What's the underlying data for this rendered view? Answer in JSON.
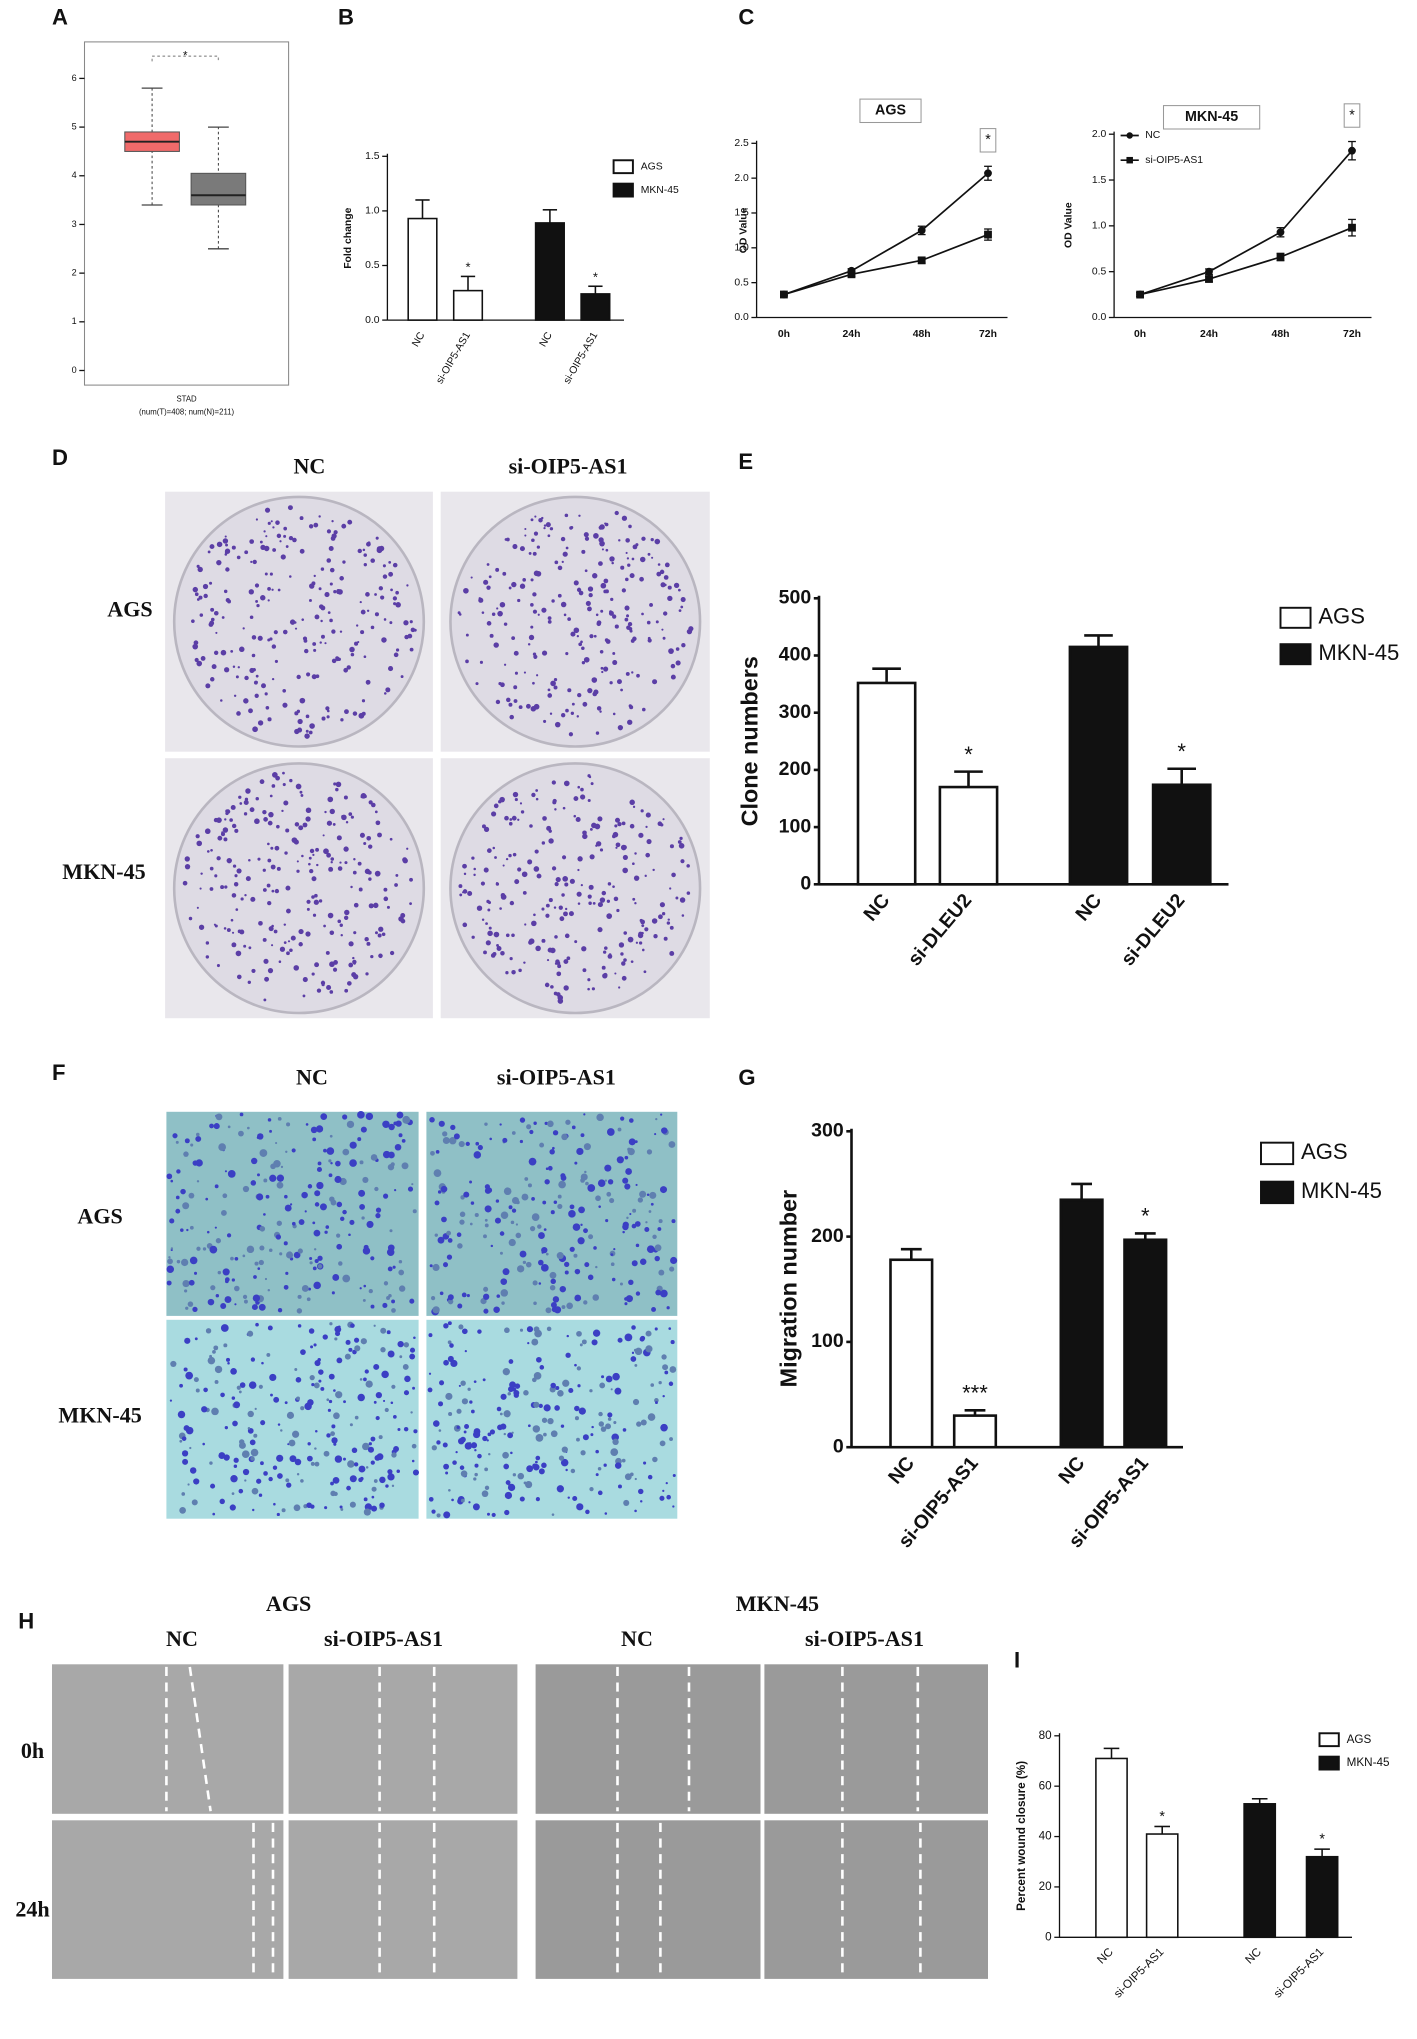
{
  "chart_data": [
    {
      "type": "box",
      "label": "A",
      "xlabel": "STAD",
      "xlabel_note": "(num(T)=408; num(N)=211)",
      "ylim": [
        -0.3,
        6.75
      ],
      "yticks": [
        0,
        1,
        2,
        3,
        4,
        5,
        6
      ],
      "significance": "*",
      "boxes": [
        {
          "color": "#f06a6a",
          "min": 3.4,
          "q1": 4.5,
          "median": 4.7,
          "q3": 4.9,
          "max": 5.8
        },
        {
          "color": "#7a7a7a",
          "min": 2.5,
          "q1": 3.4,
          "median": 3.6,
          "q3": 4.05,
          "max": 5.0
        }
      ]
    },
    {
      "type": "bar",
      "label": "B",
      "ylabel": "Fold change",
      "ylim": [
        0,
        1.5
      ],
      "yticks": [
        {
          "value": 0,
          "label": "0.0"
        },
        0.5,
        {
          "value": 1,
          "label": "1.0"
        },
        1.5
      ],
      "categories": [
        "NC",
        "si-OIP5-AS1",
        "NC",
        "si-OIP5-AS1"
      ],
      "significance": [
        null,
        "*",
        null,
        "*"
      ],
      "series": [
        {
          "name": "AGS",
          "color": "#ffffff",
          "values": [
            0.93,
            0.27,
            null,
            null
          ],
          "errors": [
            0.17,
            0.13,
            null,
            null
          ]
        },
        {
          "name": "MKN-45",
          "color": "#111111",
          "values": [
            null,
            null,
            0.89,
            0.24
          ],
          "errors": [
            null,
            null,
            0.12,
            0.07
          ]
        }
      ]
    },
    {
      "type": "line",
      "label": "C",
      "title": "AGS",
      "ylabel": "OD Value",
      "ylim": [
        0,
        2.5
      ],
      "yticks": [
        {
          "value": 0,
          "label": "0.0"
        },
        0.5,
        {
          "value": 1,
          "label": "1.0"
        },
        1.5,
        {
          "value": 2,
          "label": "2.0"
        },
        2.5
      ],
      "categories": [
        "0h",
        "24h",
        "48h",
        "72h"
      ],
      "significance": [
        null,
        null,
        null,
        "*"
      ],
      "series": [
        {
          "color": "#111111",
          "values": [
            0.33,
            0.67,
            1.25,
            2.07
          ],
          "errors": [
            0.02,
            0.03,
            0.06,
            0.1
          ]
        },
        {
          "color": "#111111",
          "values": [
            0.33,
            0.62,
            0.82,
            1.19
          ],
          "errors": [
            0.02,
            0.03,
            0.04,
            0.08
          ]
        }
      ]
    },
    {
      "type": "line",
      "title": "MKN-45",
      "ylabel": "OD Value",
      "ylim": [
        0,
        2.0
      ],
      "yticks": [
        {
          "value": 0,
          "label": "0.0"
        },
        0.5,
        {
          "value": 1,
          "label": "1.0"
        },
        1.5,
        {
          "value": 2,
          "label": "2.0"
        }
      ],
      "categories": [
        "0h",
        "24h",
        "48h",
        "72h"
      ],
      "significance": [
        null,
        null,
        null,
        "*"
      ],
      "series": [
        {
          "name": "NC",
          "color": "#111111",
          "values": [
            0.25,
            0.5,
            0.93,
            1.82
          ],
          "errors": [
            0.02,
            0.03,
            0.05,
            0.1
          ]
        },
        {
          "name": "si-OIP5-AS1",
          "color": "#111111",
          "values": [
            0.25,
            0.42,
            0.66,
            0.98
          ],
          "errors": [
            0.02,
            0.03,
            0.04,
            0.09
          ]
        }
      ]
    },
    {
      "type": "bar",
      "label": "E",
      "ylabel": "Clone numbers",
      "ylim": [
        0,
        500
      ],
      "yticks": [
        0,
        100,
        200,
        300,
        400,
        500
      ],
      "categories": [
        "NC",
        "si-DLEU2",
        "NC",
        "si-DLEU2"
      ],
      "significance": [
        null,
        "*",
        null,
        "*"
      ],
      "series": [
        {
          "name": "AGS",
          "color": "#ffffff",
          "values": [
            352,
            170,
            null,
            null
          ],
          "errors": [
            25,
            27,
            null,
            null
          ]
        },
        {
          "name": "MKN-45",
          "color": "#111111",
          "values": [
            null,
            null,
            415,
            174
          ],
          "errors": [
            null,
            null,
            20,
            28
          ]
        }
      ]
    },
    {
      "type": "bar",
      "label": "G",
      "ylabel": "Migration number",
      "ylim": [
        0,
        300
      ],
      "yticks": [
        0,
        100,
        200,
        300
      ],
      "categories": [
        "NC",
        "si-OIP5-AS1",
        "NC",
        "si-OIP5-AS1"
      ],
      "significance": [
        null,
        "***",
        null,
        "*"
      ],
      "series": [
        {
          "name": "AGS",
          "color": "#ffffff",
          "values": [
            178,
            30,
            null,
            null
          ],
          "errors": [
            10,
            5,
            null,
            null
          ]
        },
        {
          "name": "MKN-45",
          "color": "#111111",
          "values": [
            null,
            null,
            235,
            197
          ],
          "errors": [
            null,
            null,
            15,
            6
          ]
        }
      ]
    },
    {
      "type": "bar",
      "label": "I",
      "ylabel": "Percent wound closure (%)",
      "ylim": [
        0,
        80
      ],
      "yticks": [
        0,
        20,
        40,
        60,
        80
      ],
      "categories": [
        "NC",
        "si-OIP5-AS1",
        "NC",
        "si-OIP5-AS1"
      ],
      "significance": [
        null,
        "*",
        null,
        "*"
      ],
      "series": [
        {
          "name": "AGS",
          "color": "#ffffff",
          "values": [
            71,
            41,
            null,
            null
          ],
          "errors": [
            4,
            3,
            null,
            null
          ]
        },
        {
          "name": "MKN-45",
          "color": "#111111",
          "values": [
            null,
            null,
            53,
            32
          ],
          "errors": [
            null,
            null,
            2,
            3
          ]
        }
      ]
    }
  ],
  "image_panels": [
    {
      "label": "D",
      "columns": [
        "NC",
        "si-OIP5-AS1"
      ],
      "rows": [
        "AGS",
        "MKN-45"
      ]
    },
    {
      "label": "F",
      "columns": [
        "NC",
        "si-OIP5-AS1"
      ],
      "rows": [
        "AGS",
        "MKN-45"
      ]
    },
    {
      "label": "H",
      "groups": [
        "AGS",
        "MKN-45"
      ],
      "columns": [
        "NC",
        "si-OIP5-AS1",
        "NC",
        "si-OIP5-AS1"
      ],
      "rows": [
        "0h",
        "24h"
      ]
    }
  ]
}
